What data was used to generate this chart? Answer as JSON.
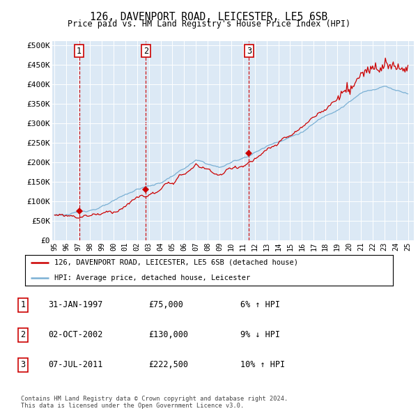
{
  "title1": "126, DAVENPORT ROAD, LEICESTER, LE5 6SB",
  "title2": "Price paid vs. HM Land Registry's House Price Index (HPI)",
  "ylabel_ticks": [
    "£0",
    "£50K",
    "£100K",
    "£150K",
    "£200K",
    "£250K",
    "£300K",
    "£350K",
    "£400K",
    "£450K",
    "£500K"
  ],
  "ytick_values": [
    0,
    50000,
    100000,
    150000,
    200000,
    250000,
    300000,
    350000,
    400000,
    450000,
    500000
  ],
  "ylim": [
    0,
    510000
  ],
  "xlim_start": 1994.8,
  "xlim_end": 2025.5,
  "bg_color": "#dce9f5",
  "sale_dates": [
    1997.08,
    2002.75,
    2011.5
  ],
  "sale_prices": [
    75000,
    130000,
    222500
  ],
  "sale_labels": [
    "1",
    "2",
    "3"
  ],
  "hpi_color": "#7ab0d4",
  "price_color": "#cc0000",
  "dashed_color": "#cc0000",
  "legend_line1": "126, DAVENPORT ROAD, LEICESTER, LE5 6SB (detached house)",
  "legend_line2": "HPI: Average price, detached house, Leicester",
  "table_entries": [
    {
      "label": "1",
      "date": "31-JAN-1997",
      "price": "£75,000",
      "hpi": "6% ↑ HPI"
    },
    {
      "label": "2",
      "date": "02-OCT-2002",
      "price": "£130,000",
      "hpi": "9% ↓ HPI"
    },
    {
      "label": "3",
      "date": "07-JUL-2011",
      "price": "£222,500",
      "hpi": "10% ↑ HPI"
    }
  ],
  "footnote": "Contains HM Land Registry data © Crown copyright and database right 2024.\nThis data is licensed under the Open Government Licence v3.0."
}
